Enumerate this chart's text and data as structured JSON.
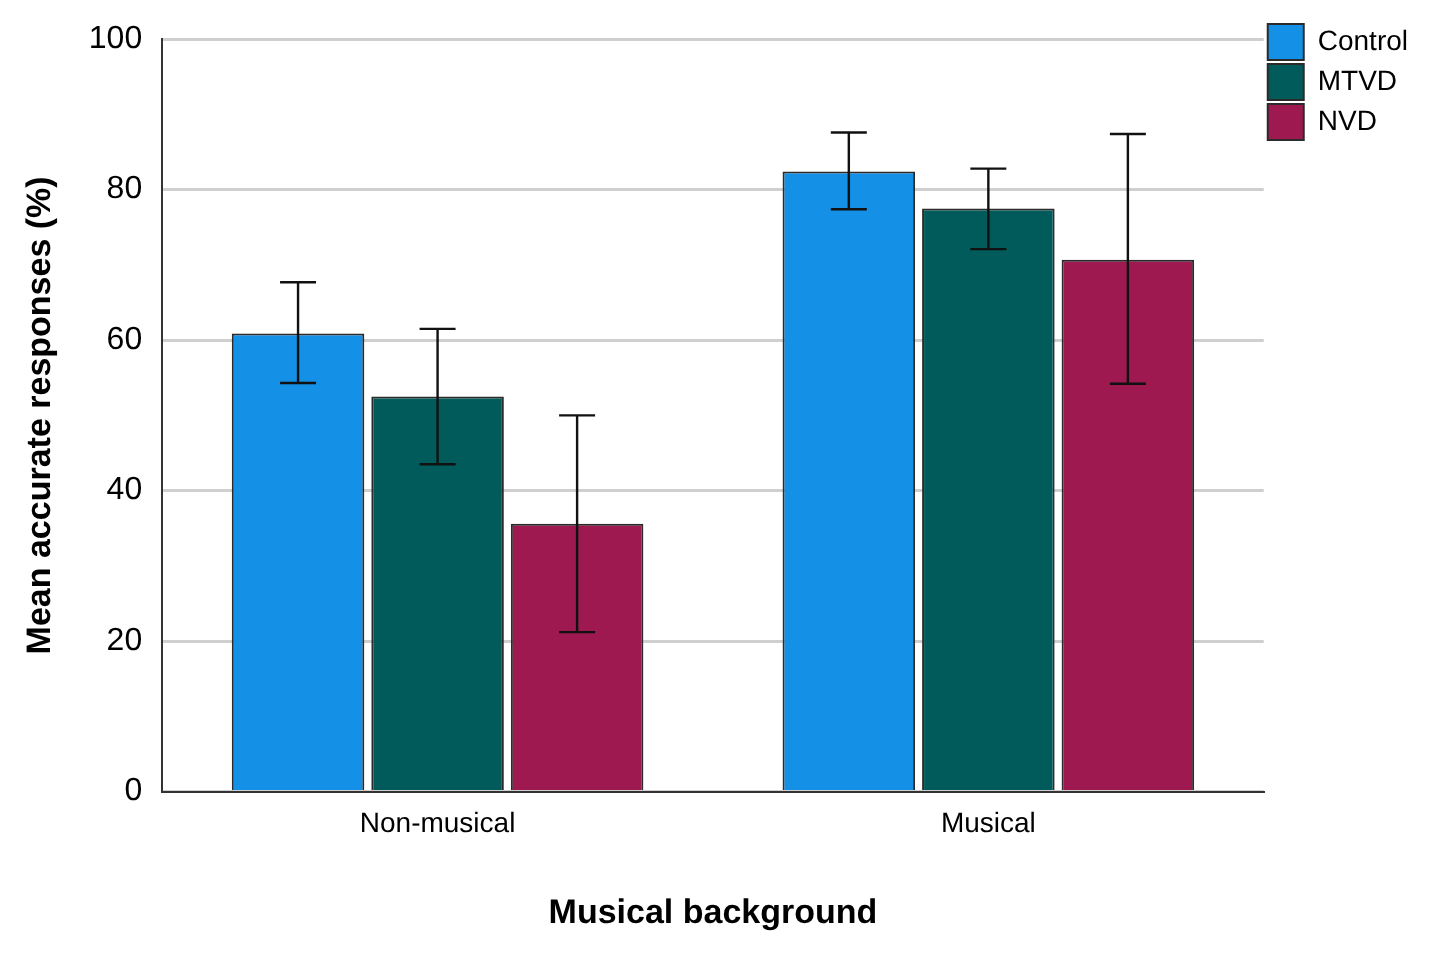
{
  "chart_data": {
    "type": "bar",
    "xlabel": "Musical background",
    "ylabel": "Mean accurate responses (%)",
    "categories": [
      "Non-musical",
      "Musical"
    ],
    "series": [
      {
        "name": "Control",
        "color": "#1490e6",
        "values": [
          60.9,
          82.4
        ],
        "errors": [
          [
            54.3,
            67.7
          ],
          [
            77.4,
            87.6
          ]
        ]
      },
      {
        "name": "MTVD",
        "color": "#005b5a",
        "values": [
          52.5,
          77.5
        ],
        "errors": [
          [
            43.5,
            61.5
          ],
          [
            72.1,
            82.8
          ]
        ]
      },
      {
        "name": "NVD",
        "color": "#9e1950",
        "values": [
          35.6,
          70.7
        ],
        "errors": [
          [
            21.2,
            50.0
          ],
          [
            54.2,
            87.4
          ]
        ]
      }
    ],
    "ylim": [
      0,
      100
    ],
    "yticks": [
      0,
      20,
      40,
      60,
      80,
      100
    ],
    "grid": "y",
    "legend": "top right"
  }
}
